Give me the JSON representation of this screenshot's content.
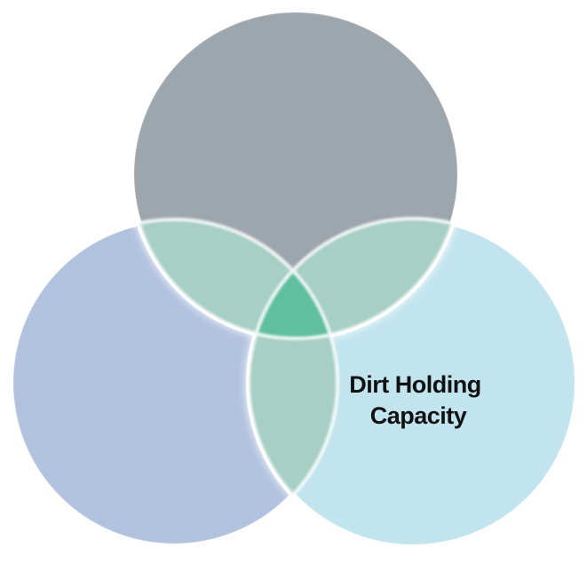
{
  "diagram": {
    "type": "venn",
    "circles": [
      {
        "id": "top",
        "label": "",
        "color": "#9da6ad"
      },
      {
        "id": "left",
        "label": "",
        "color": "#b1c2df"
      },
      {
        "id": "right",
        "label_lines": [
          "Dirt Holding",
          "Capacity"
        ],
        "color": "#c1e4ee"
      }
    ],
    "pairwise_overlap_color": "#a7cfc4",
    "center_overlap_color": "#5fbf9f",
    "stroke_color": "#ffffff",
    "text_color": "#111111"
  }
}
